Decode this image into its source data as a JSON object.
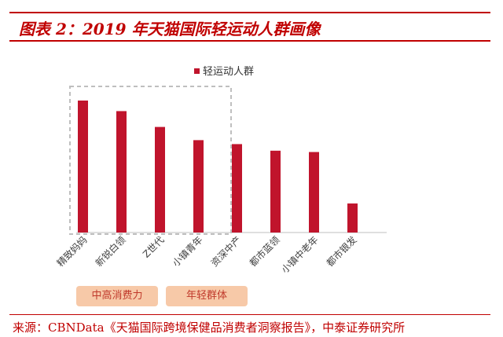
{
  "page": {
    "title": "图表 2：2019 年天猫国际轻运动人群画像",
    "source": "来源：CBNData《天猫国际跨境保健品消费者洞察报告》，中泰证券研究所"
  },
  "tags": [
    {
      "label": "中高消费力"
    },
    {
      "label": "年轻群体"
    }
  ],
  "colors": {
    "accent": "#c00000",
    "bar": "#c0142c",
    "tag_bg": "#f7c9a8",
    "tag_text": "#c0392b",
    "dashed_box": "#bfbfbf"
  },
  "chart_data": {
    "type": "bar",
    "title": "",
    "categories": [
      "精致妈妈",
      "新锐白领",
      "Z世代",
      "小镇青年",
      "资深中产",
      "都市蓝领",
      "小镇中老年",
      "都市银发"
    ],
    "series": [
      {
        "name": "轻运动人群",
        "values": [
          100,
          92,
          80,
          70,
          67,
          62,
          61,
          22
        ]
      }
    ],
    "ylim": [
      0,
      105
    ],
    "grid": false,
    "legend": "top-center",
    "highlight_group": [
      "精致妈妈",
      "新锐白领",
      "Z世代",
      "小镇青年"
    ]
  }
}
